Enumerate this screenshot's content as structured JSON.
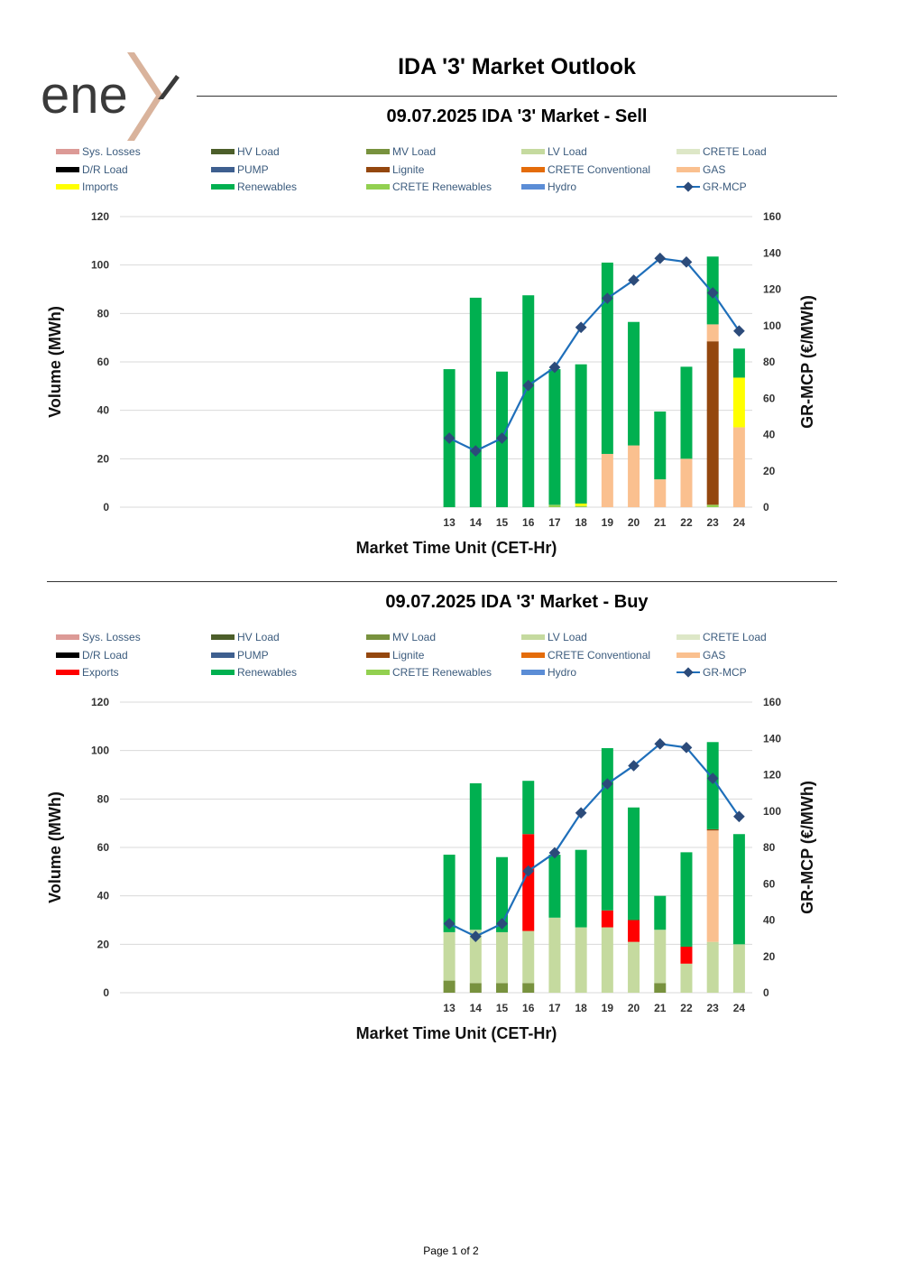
{
  "logo": {
    "text": "ene",
    "accent_color": "#d9b39c",
    "text_color": "#3a3a3a"
  },
  "header": {
    "title": "IDA '3' Market Outlook"
  },
  "footer": {
    "page": "Page 1 of 2"
  },
  "colors": {
    "sys_losses": "#dc9a96",
    "hv_load": "#4c5e2a",
    "mv_load": "#78923e",
    "lv_load": "#c5da9f",
    "crete_load": "#dde7c7",
    "dr_load": "#000000",
    "pump": "#3e5f8f",
    "lignite": "#94470e",
    "crete_conv": "#e46c0a",
    "gas": "#fac08f",
    "imports": "#ffff00",
    "exports": "#ff0000",
    "renewables": "#00b050",
    "crete_ren": "#92d050",
    "hydro": "#5b8dd6",
    "mcp_line": "#1f6fba",
    "mcp_marker": "#2c4b7a"
  },
  "chart_data": [
    {
      "type": "bar",
      "title": "09.07.2025  IDA '3' Market - Sell",
      "xlabel": "Market Time Unit (CET-Hr)",
      "ylabel": "Volume (MWh)",
      "y2label": "GR-MCP (€/MWh)",
      "ylim": [
        0,
        120
      ],
      "y2lim": [
        0,
        160
      ],
      "yticks": [
        "0",
        "20",
        "40",
        "60",
        "80",
        "100",
        "120"
      ],
      "y2ticks": [
        "0",
        "20",
        "40",
        "60",
        "80",
        "100",
        "120",
        "140",
        "160"
      ],
      "categories": [
        "13",
        "14",
        "15",
        "16",
        "17",
        "18",
        "19",
        "20",
        "21",
        "22",
        "23",
        "24"
      ],
      "legend": [
        {
          "label": "Sys. Losses",
          "color": "#dc9a96"
        },
        {
          "label": "HV Load",
          "color": "#4c5e2a"
        },
        {
          "label": "MV Load",
          "color": "#78923e"
        },
        {
          "label": "LV Load",
          "color": "#c5da9f"
        },
        {
          "label": "CRETE Load",
          "color": "#dde7c7"
        },
        {
          "label": "D/R Load",
          "color": "#000000"
        },
        {
          "label": "PUMP",
          "color": "#3e5f8f"
        },
        {
          "label": "Lignite",
          "color": "#94470e"
        },
        {
          "label": "CRETE Conventional",
          "color": "#e46c0a"
        },
        {
          "label": "GAS",
          "color": "#fac08f"
        },
        {
          "label": "Imports",
          "color": "#ffff00"
        },
        {
          "label": "Renewables",
          "color": "#00b050"
        },
        {
          "label": "CRETE Renewables",
          "color": "#92d050"
        },
        {
          "label": "Hydro",
          "color": "#5b8dd6"
        },
        {
          "label": "GR-MCP",
          "color": "#1f6fba",
          "line": true
        }
      ],
      "series": [
        {
          "name": "Imports",
          "color": "#ffff00",
          "values": [
            0,
            0,
            0,
            0,
            0,
            1,
            0,
            0,
            0,
            0,
            0,
            0
          ]
        },
        {
          "name": "Renewables",
          "color": "#00b050",
          "values": [
            57,
            86.5,
            56,
            87.5,
            56,
            57.5,
            79,
            51,
            28,
            38,
            28,
            12
          ]
        },
        {
          "name": "GAS",
          "color": "#fac08f",
          "values": [
            0,
            0,
            0,
            0,
            0,
            0,
            22,
            25.5,
            11.5,
            20,
            7,
            33
          ]
        },
        {
          "name": "Lignite",
          "color": "#94470e",
          "values": [
            0,
            0,
            0,
            0,
            0,
            0,
            0,
            0,
            0,
            0,
            67.5,
            0
          ]
        },
        {
          "name": "Imports (top)",
          "color": "#ffff00",
          "values": [
            0,
            0,
            0,
            0,
            0,
            0,
            0,
            0,
            0,
            0,
            0,
            20.5
          ]
        },
        {
          "name": "CRETE Renewables",
          "color": "#92d050",
          "values": [
            0,
            0,
            0,
            0,
            1,
            0.5,
            0,
            0,
            0,
            0,
            1,
            0
          ]
        }
      ],
      "stack_order": [
        5,
        0,
        3,
        2,
        4,
        1
      ],
      "mcp": [
        38,
        31,
        38,
        67,
        77,
        99,
        115,
        125,
        137,
        135,
        118,
        97
      ]
    },
    {
      "type": "bar",
      "title": "09.07.2025  IDA '3' Market - Buy",
      "xlabel": "Market Time Unit (CET-Hr)",
      "ylabel": "Volume (MWh)",
      "y2label": "GR-MCP (€/MWh)",
      "ylim": [
        0,
        120
      ],
      "y2lim": [
        0,
        160
      ],
      "yticks": [
        "0",
        "20",
        "40",
        "60",
        "80",
        "100",
        "120"
      ],
      "y2ticks": [
        "0",
        "20",
        "40",
        "60",
        "80",
        "100",
        "120",
        "140",
        "160"
      ],
      "categories": [
        "13",
        "14",
        "15",
        "16",
        "17",
        "18",
        "19",
        "20",
        "21",
        "22",
        "23",
        "24"
      ],
      "legend": [
        {
          "label": "Sys. Losses",
          "color": "#dc9a96"
        },
        {
          "label": "HV Load",
          "color": "#4c5e2a"
        },
        {
          "label": "MV Load",
          "color": "#78923e"
        },
        {
          "label": "LV Load",
          "color": "#c5da9f"
        },
        {
          "label": "CRETE Load",
          "color": "#dde7c7"
        },
        {
          "label": "D/R Load",
          "color": "#000000"
        },
        {
          "label": "PUMP",
          "color": "#3e5f8f"
        },
        {
          "label": "Lignite",
          "color": "#94470e"
        },
        {
          "label": "CRETE Conventional",
          "color": "#e46c0a"
        },
        {
          "label": "GAS",
          "color": "#fac08f"
        },
        {
          "label": "Exports",
          "color": "#ff0000"
        },
        {
          "label": "Renewables",
          "color": "#00b050"
        },
        {
          "label": "CRETE Renewables",
          "color": "#92d050"
        },
        {
          "label": "Hydro",
          "color": "#5b8dd6"
        },
        {
          "label": "GR-MCP",
          "color": "#1f6fba",
          "line": true
        }
      ],
      "series": [
        {
          "name": "MV Load",
          "color": "#78923e",
          "values": [
            5,
            4,
            4,
            4,
            0,
            0,
            0,
            0,
            4,
            0,
            0,
            0
          ]
        },
        {
          "name": "LV Load",
          "color": "#c5da9f",
          "values": [
            20,
            22,
            21,
            21.5,
            31,
            27,
            27,
            21,
            22,
            12,
            21,
            20
          ]
        },
        {
          "name": "GAS",
          "color": "#fac08f",
          "values": [
            0,
            0,
            0,
            0,
            0,
            0,
            0,
            0,
            0,
            0,
            46,
            0
          ]
        },
        {
          "name": "Lignite",
          "color": "#94470e",
          "values": [
            0,
            0,
            0,
            0,
            0,
            0,
            0,
            0,
            0,
            0,
            0.5,
            0
          ]
        },
        {
          "name": "Exports",
          "color": "#ff0000",
          "values": [
            0,
            0,
            0,
            40,
            0,
            0,
            7,
            9,
            0,
            7,
            0,
            0
          ]
        },
        {
          "name": "Renewables",
          "color": "#00b050",
          "values": [
            32,
            60.5,
            31,
            22,
            26,
            32,
            67,
            46.5,
            14,
            39,
            36,
            45.5
          ]
        }
      ],
      "stack_order": [
        0,
        1,
        2,
        3,
        4,
        5
      ],
      "mcp": [
        38,
        31,
        38,
        67,
        77,
        99,
        115,
        125,
        137,
        135,
        118,
        97
      ]
    }
  ]
}
